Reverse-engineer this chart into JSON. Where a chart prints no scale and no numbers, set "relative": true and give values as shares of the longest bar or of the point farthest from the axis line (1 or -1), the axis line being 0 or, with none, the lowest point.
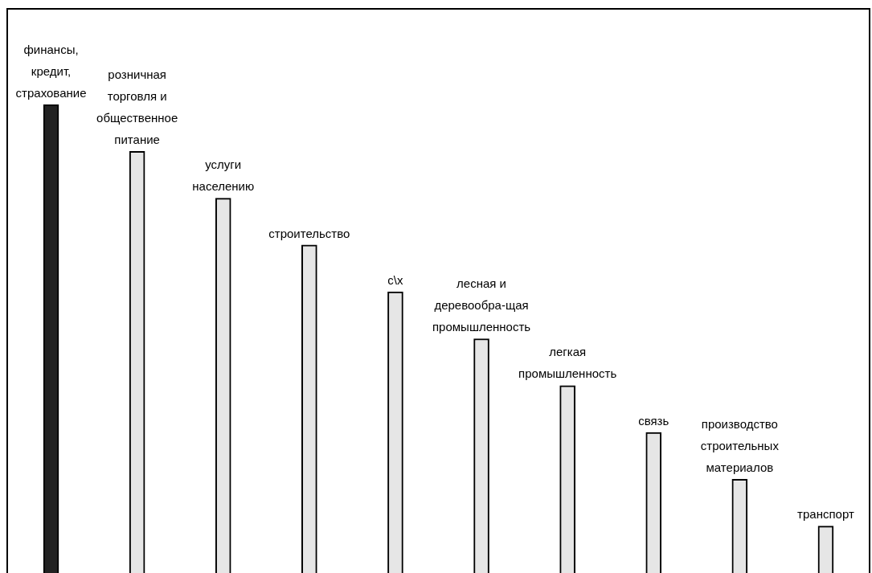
{
  "chart_data": {
    "type": "bar",
    "relative": true,
    "categories": [
      "финансы, кредит, страхование",
      "розничная торговля и общественное питание",
      "услуги населению",
      "строительство",
      "с\\х",
      "лесная и деревообра-щая промышленность",
      "легкая промышленность",
      "связь",
      "производство строительных материалов",
      "транспорт"
    ],
    "values": [
      1,
      0.9,
      0.8,
      0.7,
      0.6,
      0.5,
      0.4,
      0.3,
      0.2,
      0.1
    ],
    "colors": [
      "#222222",
      "#e6e6e6",
      "#e6e6e6",
      "#e6e6e6",
      "#e6e6e6",
      "#e6e6e6",
      "#e6e6e6",
      "#e6e6e6",
      "#e6e6e6",
      "#e6e6e6"
    ],
    "legend": false
  }
}
